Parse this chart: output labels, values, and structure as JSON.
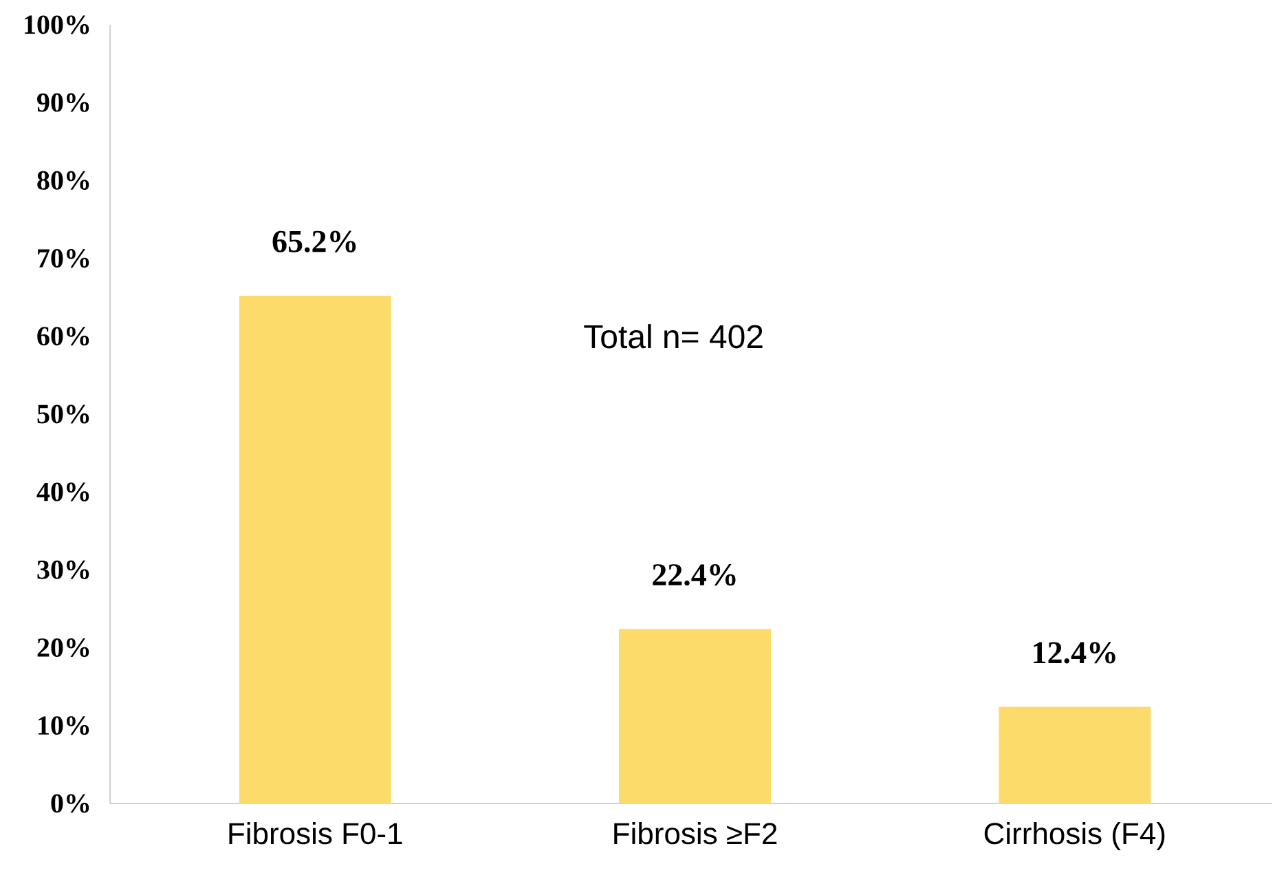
{
  "chart_data": {
    "type": "bar",
    "categories": [
      "Fibrosis F0-1",
      "Fibrosis ≥F2",
      "Cirrhosis (F4)"
    ],
    "values": [
      65.2,
      22.4,
      12.4
    ],
    "color": "#fcdb6b",
    "value_labels": [
      "65.2%",
      "22.4%",
      "12.4%"
    ],
    "ylim": [
      0,
      100
    ],
    "yticks": [
      {
        "value": 0,
        "label": "0%"
      },
      {
        "value": 10,
        "label": "10%"
      },
      {
        "value": 20,
        "label": "20%"
      },
      {
        "value": 30,
        "label": "30%"
      },
      {
        "value": 40,
        "label": "40%"
      },
      {
        "value": 50,
        "label": "50%"
      },
      {
        "value": 60,
        "label": "60%"
      },
      {
        "value": 70,
        "label": "70%"
      },
      {
        "value": 80,
        "label": "80%"
      },
      {
        "value": 90,
        "label": "90%"
      },
      {
        "value": 100,
        "label": "100%"
      }
    ],
    "annotations": [
      "Total n= 402"
    ]
  }
}
